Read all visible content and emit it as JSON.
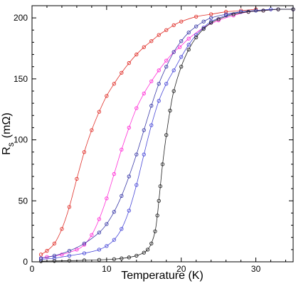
{
  "chart_data": {
    "type": "scatter",
    "xlabel": "Temperature (K)",
    "ylabel": "R",
    "ylabel_sub": "s",
    "ylabel_unit": "(mΩ)",
    "xlim": [
      0,
      35
    ],
    "ylim": [
      0,
      210
    ],
    "xticks": [
      0,
      10,
      20,
      30
    ],
    "yticks": [
      0,
      50,
      100,
      150,
      200
    ],
    "grid": false,
    "legend": "none",
    "series": [
      {
        "color": "#e0302a",
        "marker": "circle-open",
        "points": [
          [
            1.2,
            6
          ],
          [
            2,
            9
          ],
          [
            3,
            15
          ],
          [
            4,
            27
          ],
          [
            5,
            45
          ],
          [
            6,
            68
          ],
          [
            7,
            90
          ],
          [
            8,
            108
          ],
          [
            9,
            123
          ],
          [
            10,
            136
          ],
          [
            11,
            146
          ],
          [
            12,
            155
          ],
          [
            13,
            163
          ],
          [
            14,
            170
          ],
          [
            15,
            176
          ],
          [
            16,
            181
          ],
          [
            17,
            186
          ],
          [
            18,
            190
          ],
          [
            19,
            194
          ],
          [
            20,
            197
          ],
          [
            22,
            201
          ],
          [
            24,
            203
          ],
          [
            26,
            205
          ],
          [
            28,
            206
          ],
          [
            30,
            207
          ]
        ]
      },
      {
        "color": "#ff2fd6",
        "marker": "circle-open",
        "points": [
          [
            1.2,
            3
          ],
          [
            2,
            4
          ],
          [
            4,
            6
          ],
          [
            6,
            10
          ],
          [
            7,
            14
          ],
          [
            8,
            22
          ],
          [
            9,
            35
          ],
          [
            10,
            52
          ],
          [
            11,
            72
          ],
          [
            12,
            92
          ],
          [
            13,
            110
          ],
          [
            14,
            126
          ],
          [
            15,
            138
          ],
          [
            16,
            148
          ],
          [
            17,
            157
          ],
          [
            18,
            165
          ],
          [
            19,
            172
          ],
          [
            19.8,
            176
          ],
          [
            21,
            183
          ],
          [
            23,
            192
          ],
          [
            25,
            198
          ],
          [
            27,
            202
          ],
          [
            29,
            205
          ],
          [
            31,
            206
          ],
          [
            33,
            207
          ],
          [
            35,
            207
          ]
        ]
      },
      {
        "color": "#4a4ad8",
        "marker": "circle-open",
        "points": [
          [
            1.2,
            2
          ],
          [
            3,
            3
          ],
          [
            5,
            5
          ],
          [
            7,
            7
          ],
          [
            9,
            10
          ],
          [
            10,
            13
          ],
          [
            11,
            18
          ],
          [
            12,
            27
          ],
          [
            13,
            42
          ],
          [
            14,
            63
          ],
          [
            15,
            88
          ],
          [
            16,
            112
          ],
          [
            17,
            132
          ],
          [
            18,
            146
          ],
          [
            19,
            157
          ],
          [
            20,
            168
          ],
          [
            21,
            178
          ],
          [
            22,
            186
          ],
          [
            23,
            192
          ],
          [
            24,
            197
          ],
          [
            26,
            202
          ],
          [
            28,
            205
          ],
          [
            30,
            206
          ],
          [
            32,
            207
          ],
          [
            35,
            207
          ]
        ]
      },
      {
        "color": "#3c3ca8",
        "marker": "circle-open",
        "points": [
          [
            1.2,
            3
          ],
          [
            3,
            5
          ],
          [
            5,
            9
          ],
          [
            7,
            15
          ],
          [
            9,
            24
          ],
          [
            10,
            31
          ],
          [
            11,
            41
          ],
          [
            12,
            54
          ],
          [
            13,
            70
          ],
          [
            14,
            88
          ],
          [
            15,
            108
          ],
          [
            16,
            128
          ],
          [
            17,
            146
          ],
          [
            18,
            160
          ],
          [
            19,
            172
          ],
          [
            20,
            181
          ],
          [
            21,
            188
          ],
          [
            22,
            193
          ],
          [
            23,
            197
          ],
          [
            24,
            200
          ],
          [
            26,
            203
          ],
          [
            28,
            205
          ],
          [
            30,
            206
          ],
          [
            33,
            207
          ],
          [
            35,
            207
          ]
        ]
      },
      {
        "color": "#222222",
        "marker": "circle-open",
        "points": [
          [
            1.2,
            0.5
          ],
          [
            3,
            0.7
          ],
          [
            5,
            0.9
          ],
          [
            7,
            1.2
          ],
          [
            9,
            1.6
          ],
          [
            11,
            2.2
          ],
          [
            12,
            2.8
          ],
          [
            13,
            3.6
          ],
          [
            14,
            5
          ],
          [
            15,
            7.5
          ],
          [
            15.5,
            10
          ],
          [
            16,
            15
          ],
          [
            16.5,
            25
          ],
          [
            16.8,
            38
          ],
          [
            17,
            50
          ],
          [
            17.2,
            62
          ],
          [
            17.5,
            80
          ],
          [
            18,
            104
          ],
          [
            18.5,
            124
          ],
          [
            19,
            140
          ],
          [
            20,
            160
          ],
          [
            21,
            174
          ],
          [
            22,
            184
          ],
          [
            23,
            191
          ],
          [
            24,
            196
          ],
          [
            25,
            199
          ],
          [
            27,
            203
          ],
          [
            29,
            205
          ],
          [
            31,
            206
          ],
          [
            33,
            207
          ],
          [
            35,
            207
          ]
        ]
      }
    ]
  }
}
